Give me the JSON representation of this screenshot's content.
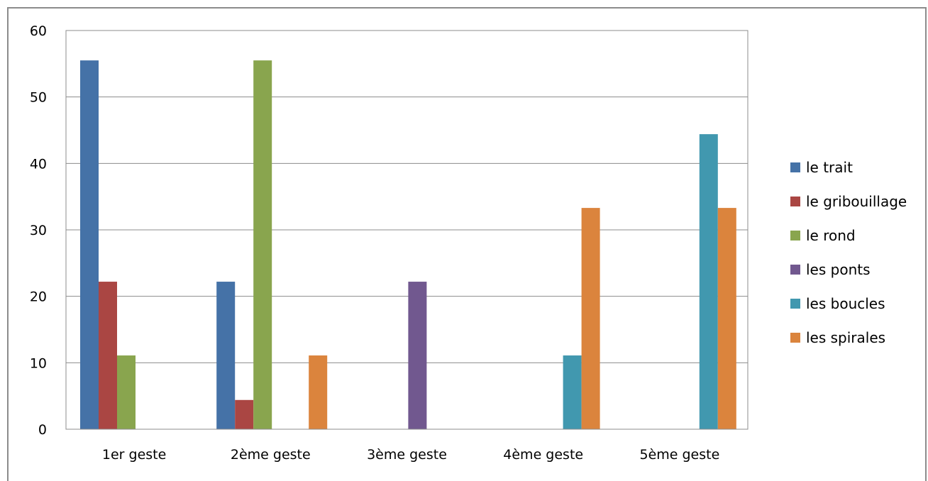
{
  "chart_data": {
    "type": "bar",
    "categories": [
      "1er geste",
      "2ème geste",
      "3ème geste",
      "4ème geste",
      "5ème geste"
    ],
    "series": [
      {
        "name": "le trait",
        "color": "#4572a7",
        "values": [
          55.5,
          22.2,
          0,
          0,
          0
        ]
      },
      {
        "name": "le gribouillage",
        "color": "#aa4643",
        "values": [
          22.2,
          4.4,
          0,
          0,
          0
        ]
      },
      {
        "name": "le rond",
        "color": "#89a54e",
        "values": [
          11.1,
          55.5,
          0,
          0,
          0
        ]
      },
      {
        "name": "les ponts",
        "color": "#71588f",
        "values": [
          0,
          0,
          22.2,
          0,
          0
        ]
      },
      {
        "name": "les boucles",
        "color": "#4198af",
        "values": [
          0,
          0,
          0,
          11.1,
          44.4
        ]
      },
      {
        "name": "les spirales",
        "color": "#db843d",
        "values": [
          0,
          11.1,
          0,
          33.3,
          33.3
        ]
      }
    ],
    "yticks": [
      "0",
      "10",
      "20",
      "30",
      "40",
      "50",
      "60"
    ],
    "ylim": [
      0,
      60
    ],
    "grid": true,
    "legend": "right"
  }
}
